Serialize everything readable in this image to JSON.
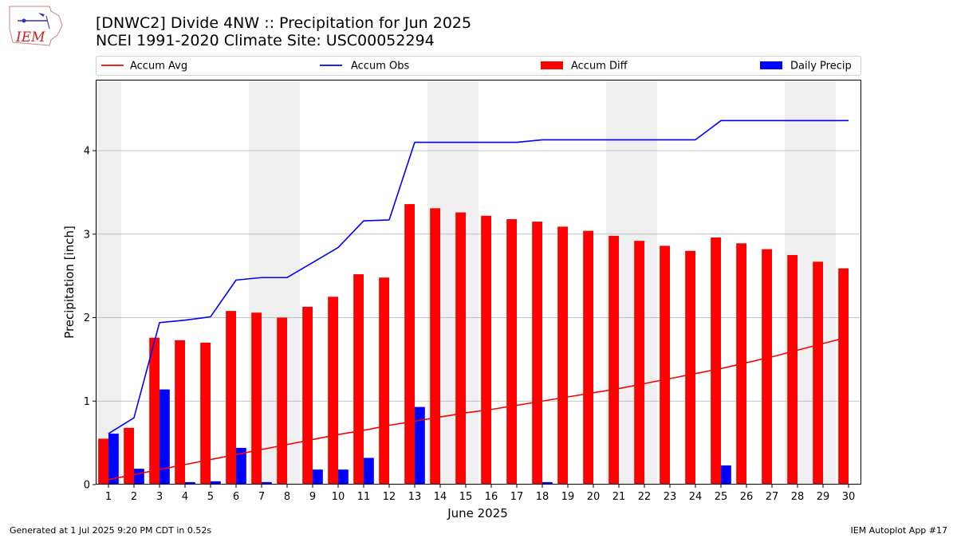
{
  "header": {
    "title_line1": "[DNWC2] Divide 4NW :: Precipitation for Jun 2025",
    "title_line2": "NCEI 1991-2020 Climate Site: USC00052294"
  },
  "logo": {
    "text": "IEM"
  },
  "footer": {
    "generated": "Generated at 1 Jul 2025 9:20 PM CDT in 0.52s",
    "app": "IEM Autoplot App #17"
  },
  "colors": {
    "accum_avg": "#ff0000",
    "accum_obs": "#0000ff",
    "accum_diff": "#ff0000",
    "daily_precip": "#0000ff",
    "weekend_shade": "#efefef",
    "grid": "#b0b0b0"
  },
  "chart_data": {
    "type": "bar",
    "xlabel": "June 2025",
    "ylabel": "Precipitation [inch]",
    "ylim": [
      0,
      4.85
    ],
    "yticks": [
      0,
      1,
      2,
      3,
      4
    ],
    "grid": "horizontal",
    "legend_placement": "top",
    "x": [
      1,
      2,
      3,
      4,
      5,
      6,
      7,
      8,
      9,
      10,
      11,
      12,
      13,
      14,
      15,
      16,
      17,
      18,
      19,
      20,
      21,
      22,
      23,
      24,
      25,
      26,
      27,
      28,
      29,
      30
    ],
    "weekend_days": [
      1,
      7,
      8,
      14,
      15,
      21,
      22,
      28,
      29
    ],
    "series": [
      {
        "name": "Accum Avg",
        "kind": "line",
        "values": [
          0.06,
          0.12,
          0.18,
          0.24,
          0.3,
          0.36,
          0.42,
          0.48,
          0.54,
          0.6,
          0.65,
          0.71,
          0.76,
          0.81,
          0.86,
          0.9,
          0.95,
          1.0,
          1.05,
          1.1,
          1.15,
          1.21,
          1.27,
          1.33,
          1.39,
          1.46,
          1.53,
          1.61,
          1.69,
          1.77
        ]
      },
      {
        "name": "Accum Obs",
        "kind": "line",
        "values": [
          0.61,
          0.8,
          1.94,
          1.97,
          2.01,
          2.45,
          2.48,
          2.48,
          2.66,
          2.84,
          3.16,
          3.17,
          4.1,
          4.1,
          4.1,
          4.1,
          4.1,
          4.13,
          4.13,
          4.13,
          4.13,
          4.13,
          4.13,
          4.13,
          4.36,
          4.36,
          4.36,
          4.36,
          4.36,
          4.36
        ]
      },
      {
        "name": "Accum Diff",
        "kind": "bar",
        "values": [
          0.55,
          0.68,
          1.76,
          1.73,
          1.7,
          2.08,
          2.06,
          2.0,
          2.13,
          2.25,
          2.52,
          2.48,
          3.36,
          3.31,
          3.26,
          3.22,
          3.18,
          3.15,
          3.09,
          3.04,
          2.98,
          2.92,
          2.86,
          2.8,
          2.96,
          2.89,
          2.82,
          2.75,
          2.67,
          2.59
        ]
      },
      {
        "name": "Daily Precip",
        "kind": "bar",
        "values": [
          0.61,
          0.19,
          1.14,
          0.03,
          0.04,
          0.44,
          0.03,
          0.01,
          0.18,
          0.18,
          0.32,
          0.01,
          0.93,
          0.0,
          0.0,
          0.0,
          0.0,
          0.03,
          0.0,
          0.0,
          0.0,
          0.0,
          0.0,
          0.0,
          0.23,
          0.01,
          0.0,
          0.0,
          0.0,
          0.01
        ]
      }
    ]
  }
}
